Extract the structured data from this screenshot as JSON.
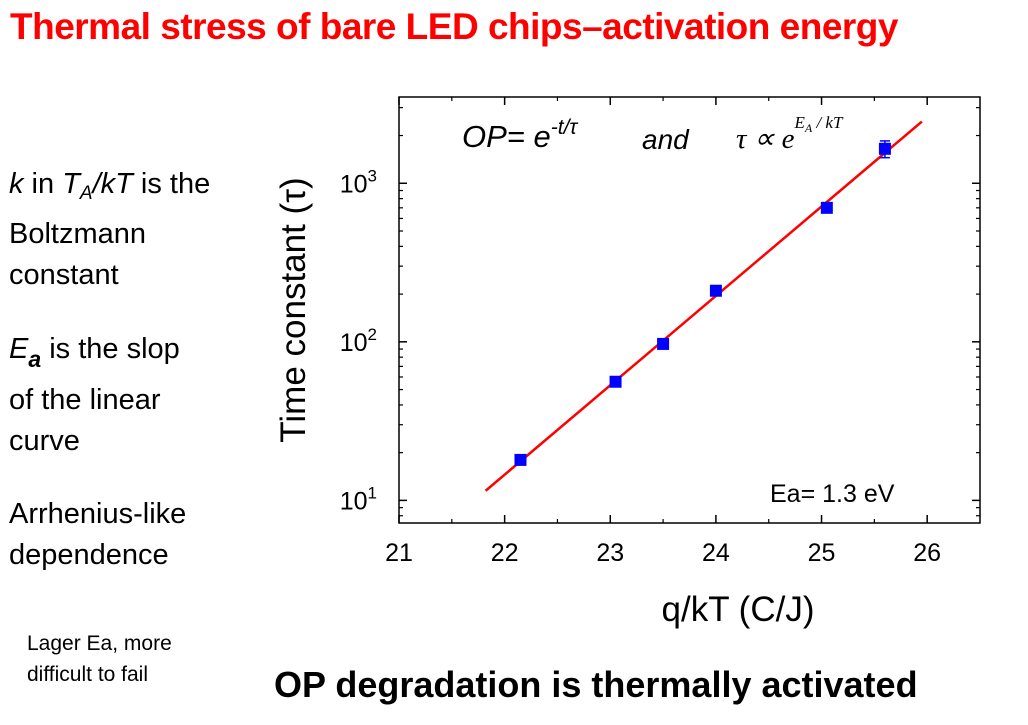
{
  "slide": {
    "title": "Thermal stress of bare LED chips–activation energy",
    "side_text": {
      "k_var": "k",
      "k_in": " in ",
      "k_T": "T",
      "k_A": "A",
      "k_slash": "/",
      "k_kT": "kT",
      "k_rest": " is the",
      "line2": "Boltzmann",
      "line3": "constant",
      "ea_E": "E",
      "ea_a": "a",
      "ea_rest": " is the slop",
      "line5": "of the linear",
      "line6": "curve",
      "line7": "Arrhenius-like",
      "line8": "dependence"
    },
    "note_line1": "Lager Ea, more",
    "note_line2": "difficult to fail",
    "conclusion": "OP degradation is thermally activated"
  },
  "chart_data": {
    "type": "scatter",
    "title": "",
    "xlabel": "q/kT (C/J)",
    "ylabel": "Time constant (τ)",
    "xlim": [
      21,
      26.5
    ],
    "ylim": [
      7.2,
      3500
    ],
    "yscale": "log",
    "x_ticks": [
      "21",
      "22",
      "23",
      "24",
      "25",
      "26"
    ],
    "y_ticks": [
      "10",
      "10",
      "10"
    ],
    "y_tick_exponents": [
      "1",
      "2",
      "3"
    ],
    "series": [
      {
        "x": [
          22.15,
          23.05,
          23.5,
          24.0,
          25.05,
          25.6
        ],
        "y": [
          18,
          56,
          97,
          210,
          700,
          1650
        ],
        "color": "#0000ff",
        "error_bar_point_index": 5,
        "error_bar": [
          1450,
          1850
        ]
      }
    ],
    "fit_line": {
      "x": [
        21.82,
        25.95
      ],
      "y": [
        11.5,
        2450
      ],
      "color": "#ff0000"
    },
    "formula": {
      "op": "OP= e",
      "op_exp": "-t/τ",
      "and": "and",
      "tau_prop": "τ ∝ e",
      "tau_exp": "E",
      "tau_exp_sub": "A",
      "tau_exp_rest": " / kT"
    },
    "annotation": "Ea= 1.3 eV"
  }
}
